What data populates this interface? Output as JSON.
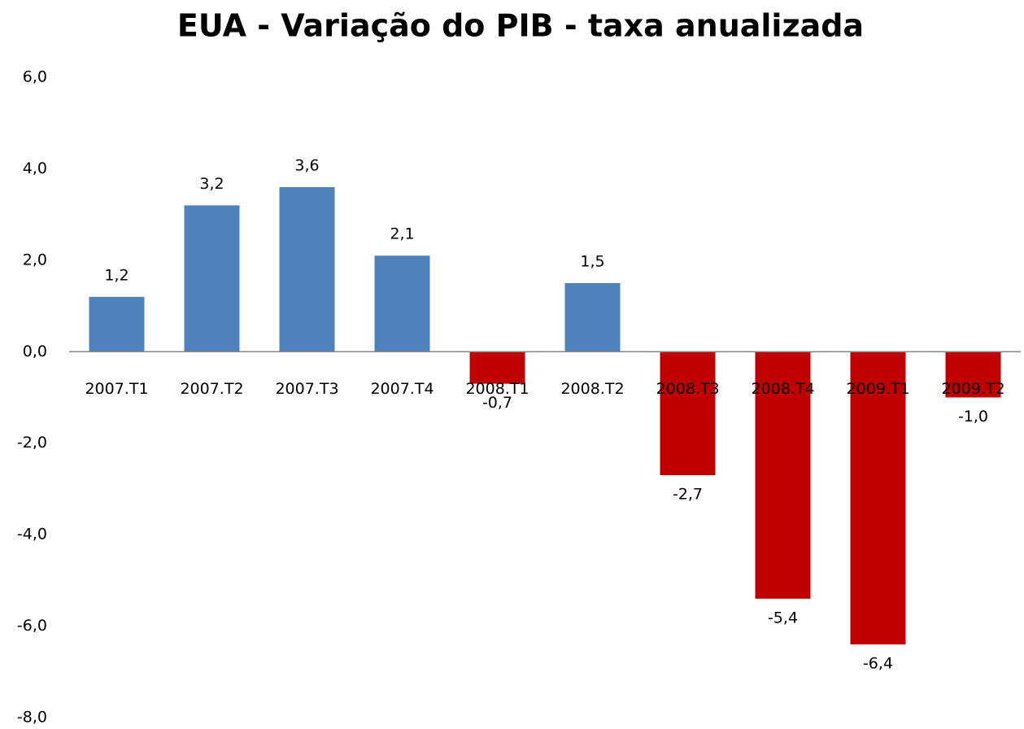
{
  "chart_data": {
    "type": "bar",
    "title": "EUA - Variação do PIB - taxa anualizada",
    "categories": [
      "2007.T1",
      "2007.T2",
      "2007.T3",
      "2007.T4",
      "2008.T1",
      "2008.T2",
      "2008.T3",
      "2008.T4",
      "2009.T1",
      "2009.T2"
    ],
    "values": [
      1.2,
      3.2,
      3.6,
      2.1,
      -0.7,
      1.5,
      -2.7,
      -5.4,
      -6.4,
      -1.0
    ],
    "value_labels": [
      "1,2",
      "3,2",
      "3,6",
      "2,1",
      "-0,7",
      "1,5",
      "-2,7",
      "-5,4",
      "-6,4",
      "-1,0"
    ],
    "color": "#4f81bd",
    "negative_color": "#c00000",
    "ylim": [
      -8,
      6
    ],
    "yticks": [
      {
        "value": -8,
        "label": "-8,0"
      },
      {
        "value": -6,
        "label": "-6,0"
      },
      {
        "value": -4,
        "label": "-4,0"
      },
      {
        "value": -2,
        "label": "-2,0"
      },
      {
        "value": 0,
        "label": "0,0"
      },
      {
        "value": 2,
        "label": "2,0"
      },
      {
        "value": 4,
        "label": "4,0"
      },
      {
        "value": 6,
        "label": "6,0"
      }
    ],
    "grid": false
  }
}
